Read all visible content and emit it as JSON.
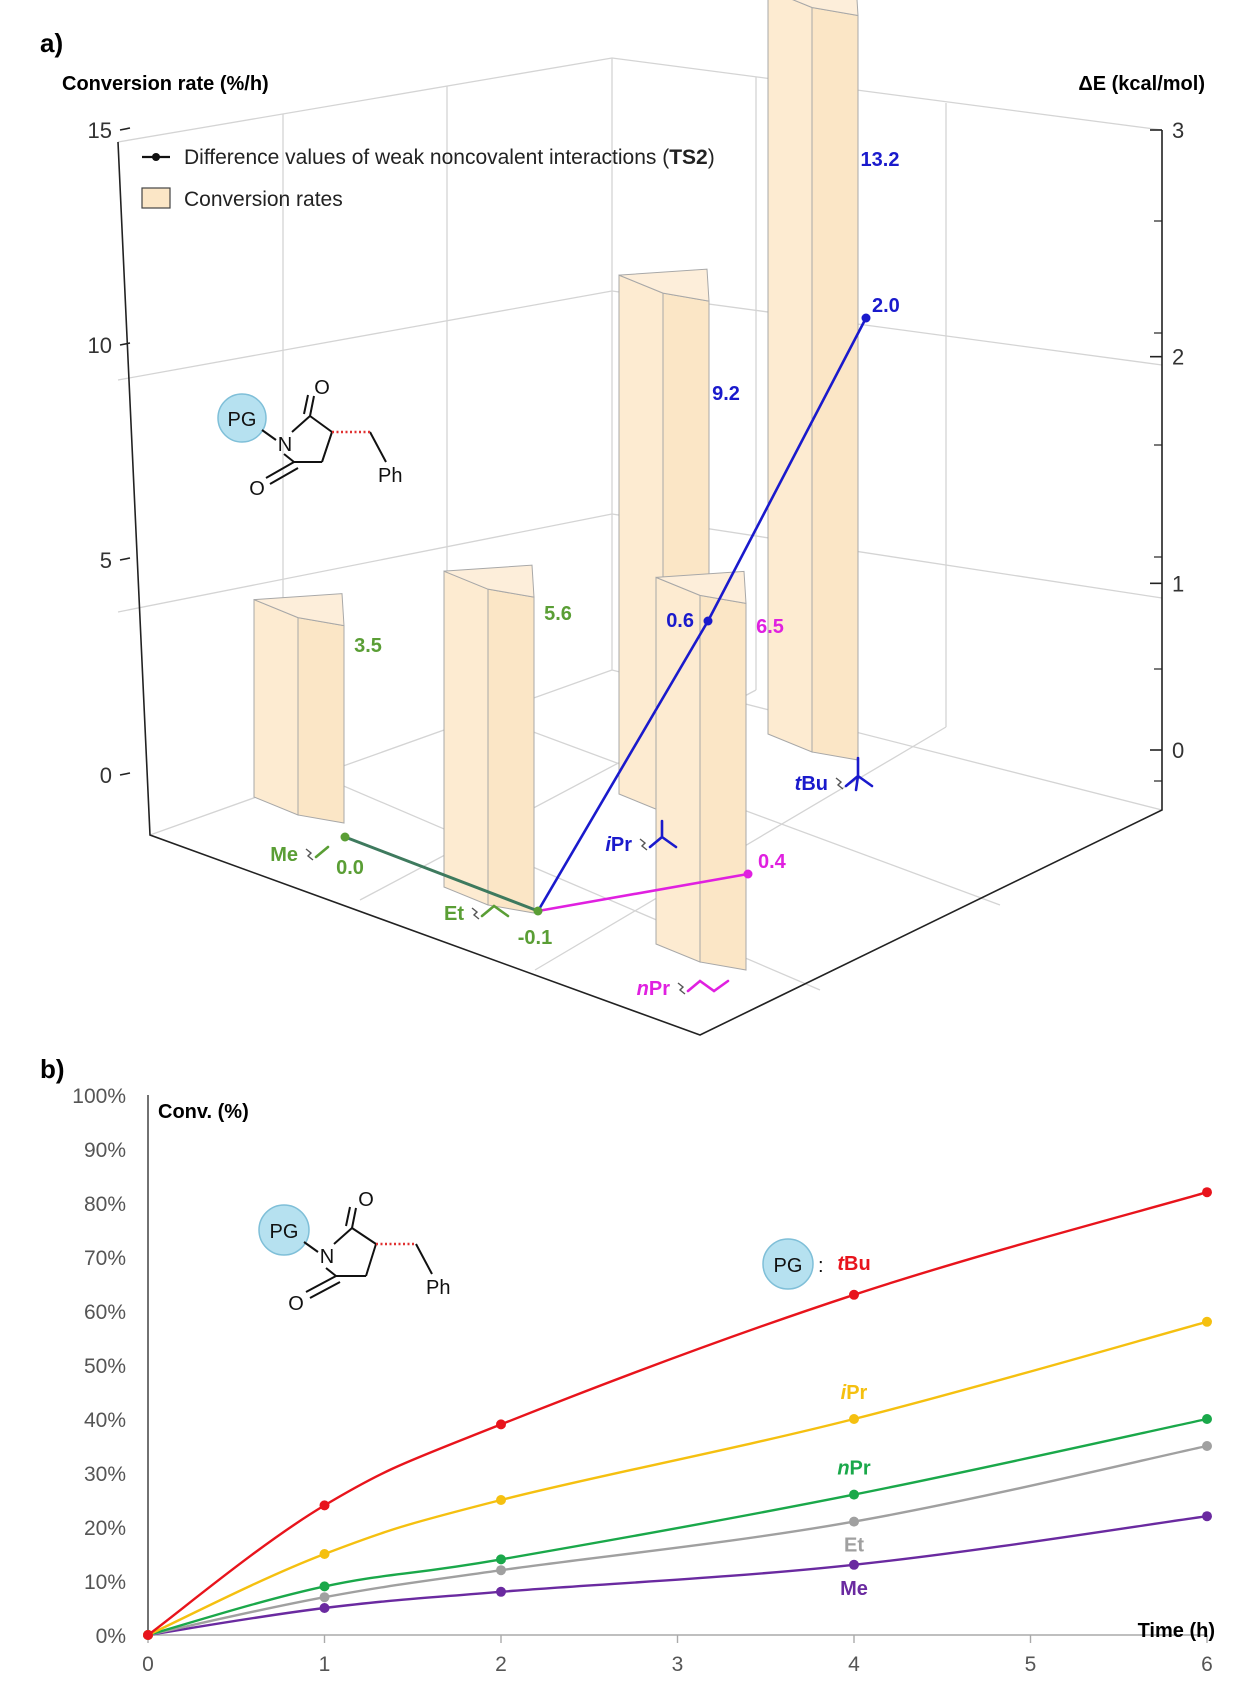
{
  "panel_a_label": "a)",
  "panel_b_label": "b)",
  "chart_data": [
    {
      "type": "bar",
      "subtype": "3d-bar-with-line",
      "ylabel": "Conversion rate (%/h)",
      "y2label": "ΔE (kcal/mol)",
      "ylim": [
        0,
        15
      ],
      "y2lim": [
        0,
        3
      ],
      "yticks": [
        0,
        5,
        10,
        15
      ],
      "y2ticks": [
        0,
        1,
        2,
        3
      ],
      "categories": [
        {
          "label": "Me",
          "prefix": "",
          "base": "Me",
          "color": "#5a9e35"
        },
        {
          "label": "Et",
          "prefix": "",
          "base": "Et",
          "color": "#5a9e35"
        },
        {
          "label": "iPr",
          "prefix": "i",
          "base": "Pr",
          "color": "#1a1acc"
        },
        {
          "label": "nPr",
          "prefix": "n",
          "base": "Pr",
          "color": "#e020e0"
        },
        {
          "label": "tBu",
          "prefix": "t",
          "base": "Bu",
          "color": "#1a1acc"
        }
      ],
      "series": [
        {
          "name": "Conversion rates",
          "values": [
            3.5,
            5.6,
            9.2,
            6.5,
            13.2
          ],
          "value_labels": [
            "3.5",
            "5.6",
            "9.2",
            "6.5",
            "13.2"
          ],
          "color": "#fbe6c6"
        },
        {
          "name": "Difference values of weak noncovalent interactions (TS2)",
          "values": [
            0.0,
            -0.1,
            0.6,
            0.4,
            2.0
          ],
          "value_labels": [
            "0.0",
            "-0.1",
            "0.6",
            "0.4",
            "2.0"
          ]
        }
      ],
      "legend": {
        "line_label_pre": "Difference values of weak noncovalent interactions (",
        "line_label_bold": "TS2",
        "line_label_post": ")",
        "bar_label": "Conversion rates",
        "position": "top-left"
      }
    },
    {
      "type": "line",
      "xlabel": "Time (h)",
      "ylabel": "Conv. (%)",
      "x": [
        0,
        1,
        2,
        4,
        6
      ],
      "xticks": [
        0,
        1,
        2,
        3,
        4,
        5,
        6
      ],
      "ylim": [
        0,
        100
      ],
      "yticks": [
        0,
        10,
        20,
        30,
        40,
        50,
        60,
        70,
        80,
        90,
        100
      ],
      "ytick_suffix": "%",
      "series": [
        {
          "name": "tBu",
          "prefix": "t",
          "base": "Bu",
          "color": "#e8141c",
          "values": [
            0,
            24,
            39,
            63,
            82
          ]
        },
        {
          "name": "iPr",
          "prefix": "i",
          "base": "Pr",
          "color": "#f5c010",
          "values": [
            0,
            15,
            25,
            40,
            58
          ]
        },
        {
          "name": "nPr",
          "prefix": "n",
          "base": "Pr",
          "color": "#1aa84a",
          "values": [
            0,
            9,
            14,
            26,
            40
          ]
        },
        {
          "name": "Et",
          "prefix": "",
          "base": "Et",
          "color": "#a0a0a0",
          "values": [
            0,
            7,
            12,
            21,
            35
          ]
        },
        {
          "name": "Me",
          "prefix": "",
          "base": "Me",
          "color": "#6a2aa0",
          "values": [
            0,
            5,
            8,
            13,
            22
          ]
        }
      ]
    }
  ],
  "molecule": {
    "badge": "PG",
    "n_atom": "N",
    "o_atom": "O",
    "ph_group": "Ph"
  },
  "pg_key": {
    "badge": "PG",
    "suffix": ":"
  }
}
